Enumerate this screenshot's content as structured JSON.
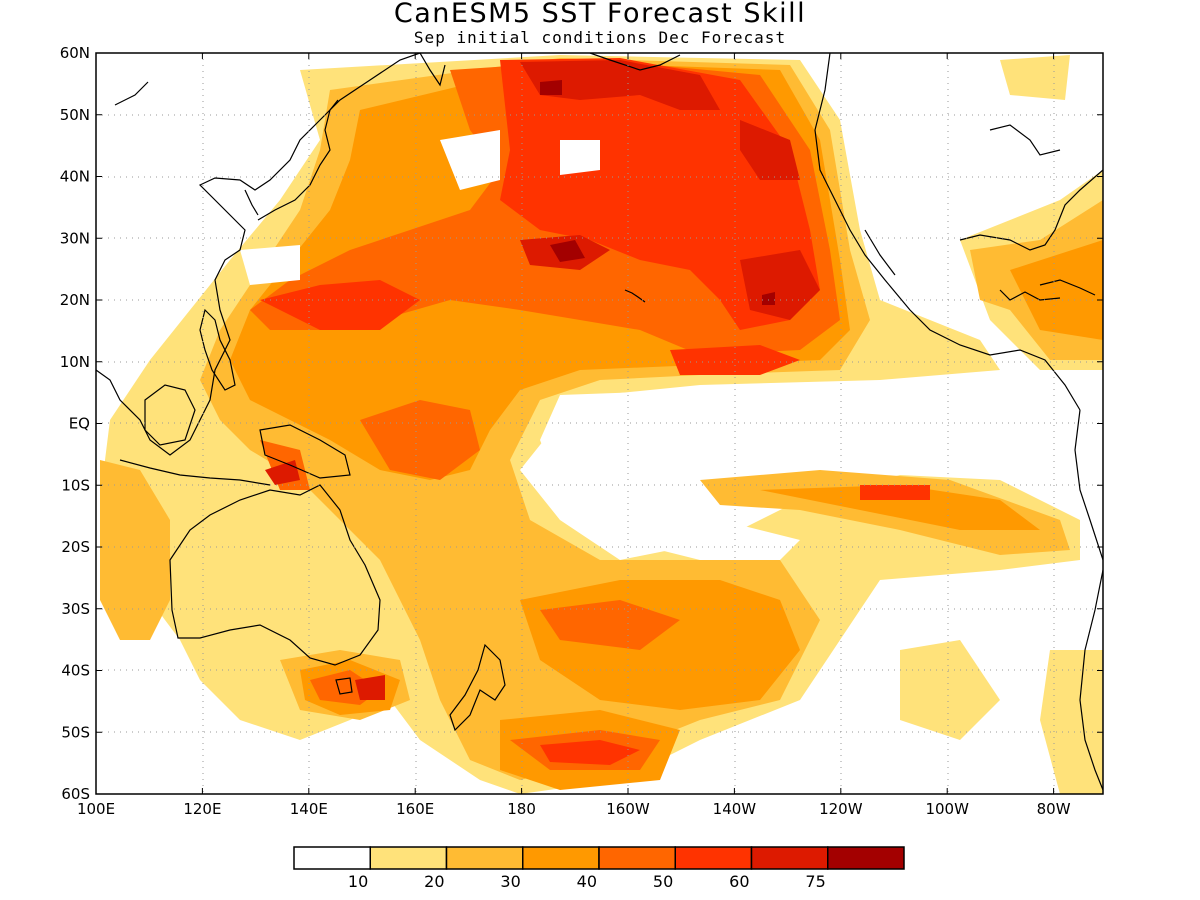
{
  "title": "CanESM5 SST Forecast Skill",
  "subtitle": "Sep initial conditions  Dec Forecast",
  "map": {
    "lat_ticks": [
      "60N",
      "50N",
      "40N",
      "30N",
      "20N",
      "10N",
      "EQ",
      "10S",
      "20S",
      "30S",
      "40S",
      "50S",
      "60S"
    ],
    "lon_ticks": [
      "100E",
      "120E",
      "140E",
      "160E",
      "180",
      "160W",
      "140W",
      "120W",
      "100W",
      "80W"
    ],
    "grid": true
  },
  "colorbar": {
    "colors": [
      "#ffffff",
      "#ffe27a",
      "#ffbb33",
      "#ff9900",
      "#ff6600",
      "#ff3300",
      "#dd1a00",
      "#a30000"
    ],
    "labels": [
      "10",
      "20",
      "30",
      "40",
      "50",
      "60",
      "75"
    ]
  },
  "chart_data": {
    "type": "heatmap",
    "title": "CanESM5 SST Forecast Skill",
    "subtitle": "Sep initial conditions  Dec Forecast",
    "xlim": [
      "100E",
      "70W"
    ],
    "ylim": [
      "60S",
      "60N"
    ],
    "levels": [
      10,
      20,
      30,
      40,
      50,
      60,
      75
    ],
    "colors": [
      "#ffffff",
      "#ffe27a",
      "#ffbb33",
      "#ff9900",
      "#ff6600",
      "#ff3300",
      "#dd1a00",
      "#a30000"
    ]
  }
}
